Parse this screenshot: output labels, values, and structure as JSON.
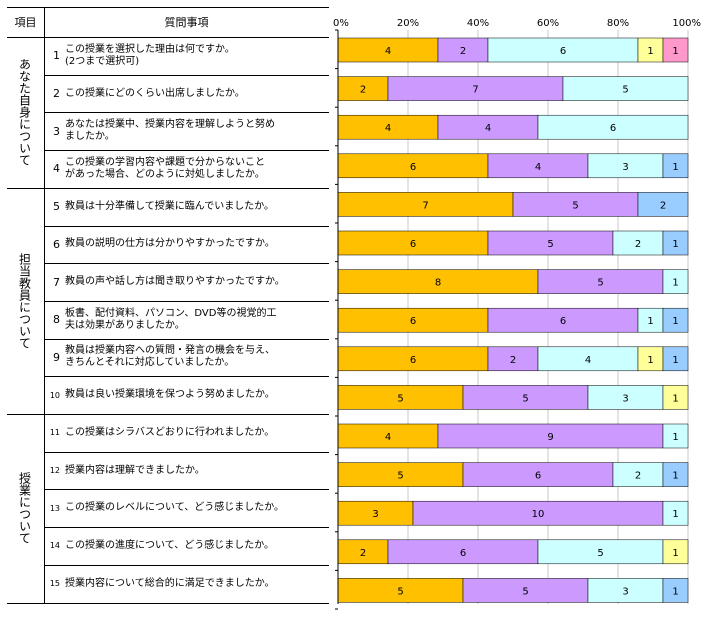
{
  "table": {
    "header_category": "項目",
    "header_question": "質問事項",
    "sections": [
      {
        "label": "あなた自身について",
        "start": 0,
        "count": 4
      },
      {
        "label": "担当教員について",
        "start": 4,
        "count": 6
      },
      {
        "label": "授業について",
        "start": 10,
        "count": 5
      }
    ],
    "questions": [
      {
        "num": "1",
        "text": "この授業を選択した理由は何ですか。\n(2つまで選択可)"
      },
      {
        "num": "2",
        "text": "この授業にどのくらい出席しましたか。"
      },
      {
        "num": "3",
        "text": "あなたは授業中、授業内容を理解しようと努め\nましたか。"
      },
      {
        "num": "4",
        "text": "この授業の学習内容や課題で分からないこと\nがあった場合、どのように対処しましたか。"
      },
      {
        "num": "5",
        "text": "教員は十分準備して授業に臨んでいましたか。"
      },
      {
        "num": "6",
        "text": "教員の説明の仕方は分かりやすかったですか。"
      },
      {
        "num": "7",
        "text": "教員の声や話し方は聞き取りやすかったですか。"
      },
      {
        "num": "8",
        "text": "板書、配付資料、パソコン、DVD等の視覚的工\n夫は効果がありましたか。"
      },
      {
        "num": "9",
        "text": "教員は授業内容への質問・発言の機会を与え、\nきちんとそれに対応していましたか。"
      },
      {
        "num": "10",
        "text": "教員は良い授業環境を保つよう努めましたか。"
      },
      {
        "num": "11",
        "text": "この授業はシラバスどおりに行われましたか。"
      },
      {
        "num": "12",
        "text": "授業内容は理解できましたか。"
      },
      {
        "num": "13",
        "text": "この授業のレベルについて、どう感じましたか。"
      },
      {
        "num": "14",
        "text": "この授業の進度について、どう感じましたか。"
      },
      {
        "num": "15",
        "text": "授業内容について総合的に満足できましたか。"
      }
    ]
  },
  "chart_data": {
    "type": "bar",
    "orientation": "horizontal",
    "stacked": "percent",
    "categories": [
      "1",
      "2",
      "3",
      "4",
      "5",
      "6",
      "7",
      "8",
      "9",
      "10",
      "11",
      "12",
      "13",
      "14",
      "15"
    ],
    "xlim": [
      0,
      100
    ],
    "xticks": [
      "0%",
      "20%",
      "40%",
      "60%",
      "80%",
      "100%"
    ],
    "colors": [
      "#FFC000",
      "#CC99FF",
      "#CCFFFF",
      "#FFFF99",
      "#FF99CC",
      "#99CCFF"
    ],
    "rows": [
      [
        4,
        2,
        6,
        1,
        1,
        0
      ],
      [
        2,
        7,
        5,
        0,
        0,
        0
      ],
      [
        4,
        4,
        6,
        0,
        0,
        0
      ],
      [
        6,
        4,
        3,
        0,
        0,
        1
      ],
      [
        7,
        5,
        0,
        0,
        0,
        2
      ],
      [
        6,
        5,
        2,
        0,
        0,
        1
      ],
      [
        8,
        5,
        1,
        0,
        0,
        0
      ],
      [
        6,
        6,
        1,
        0,
        0,
        1
      ],
      [
        6,
        2,
        4,
        1,
        0,
        1
      ],
      [
        5,
        5,
        3,
        1,
        0,
        0
      ],
      [
        4,
        9,
        1,
        0,
        0,
        0
      ],
      [
        5,
        6,
        2,
        0,
        0,
        1
      ],
      [
        3,
        10,
        1,
        0,
        0,
        0
      ],
      [
        2,
        6,
        5,
        1,
        0,
        0
      ],
      [
        5,
        5,
        3,
        0,
        0,
        1
      ]
    ]
  }
}
